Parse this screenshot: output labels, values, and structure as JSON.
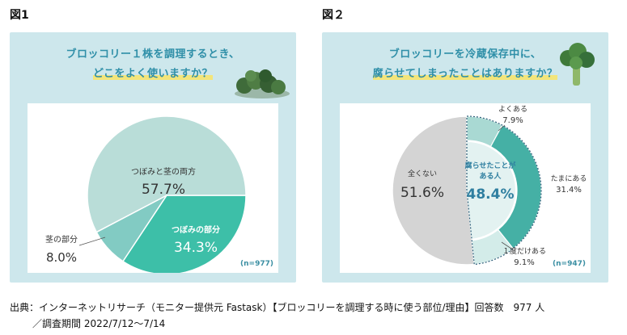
{
  "figure1": {
    "label": "図1",
    "question_line1": "ブロッコリー１株を調理するとき、",
    "question_line2": "どこをよく使いますか？",
    "n": "(n=977)"
  },
  "figure2": {
    "label": "図２",
    "question_line1": "ブロッコリーを冷蔵保存中に、",
    "question_line2": "腐らせてしまったことはありますか？",
    "n": "(n=947)",
    "inner_label_line1": "腐らせたことが",
    "inner_label_line2": "ある人",
    "inner_value": "48.4%"
  },
  "caption": {
    "line1": "出典：インターネットリサーチ（モニター提供元 Fastask）【ブロッコリーを調理する時に使う部位/理由】回答数　977 人",
    "line2": "／調査期間 2022/7/12〜7/14"
  },
  "colors": {
    "panel_bg": "#cde7ec",
    "accent_teal": "#3dbfa8",
    "light_teal": "#b9ddd8",
    "mid_teal": "#82cbc3",
    "gray": "#d4d4d4",
    "ring_dark": "#45b0a5",
    "ring_mid": "#a9d9d3",
    "ring_light": "#d3ece9"
  },
  "chart_data": [
    {
      "type": "pie",
      "slices": [
        {
          "label": "つぼみと茎の両方",
          "value": 57.7,
          "display": "57.7%"
        },
        {
          "label": "つぼみの部分",
          "value": 34.3,
          "display": "34.3%"
        },
        {
          "label": "茎の部分",
          "value": 8.0,
          "display": "8.0%"
        }
      ]
    },
    {
      "type": "pie",
      "slices": [
        {
          "label": "全くない",
          "value": 51.6,
          "display": "51.6%"
        },
        {
          "label": "よくある",
          "value": 7.9,
          "display": "7.9%"
        },
        {
          "label": "たまにある",
          "value": 31.4,
          "display": "31.4%"
        },
        {
          "label": "１度だけある",
          "value": 9.1,
          "display": "9.1%"
        }
      ]
    }
  ]
}
